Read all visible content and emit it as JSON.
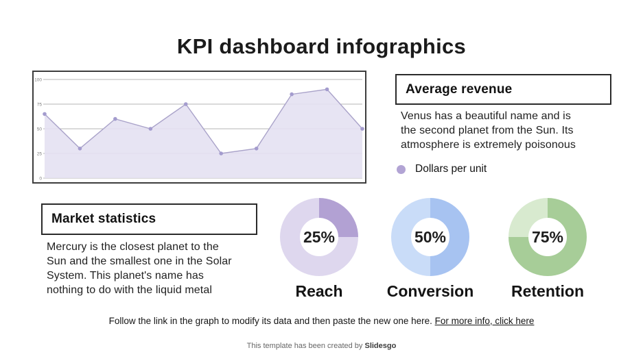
{
  "title": "KPI dashboard infographics",
  "average_revenue": {
    "heading": "Average revenue",
    "body_lines": [
      "Venus has a beautiful name and is",
      "the second planet from the Sun. Its",
      "atmosphere is extremely poisonous"
    ],
    "legend": {
      "label": "Dollars per unit",
      "color": "#b2a4d4"
    }
  },
  "market_statistics": {
    "heading": "Market statistics",
    "body_lines": [
      "Mercury is the closest planet to the",
      "Sun and the smallest one in the Solar",
      "System. This planet's name has",
      "nothing to do with the liquid metal"
    ]
  },
  "kpis": [
    {
      "label": "Reach",
      "value": 25,
      "value_label": "25%",
      "color_dark": "#b2a1d3",
      "color_light": "#ded7ee"
    },
    {
      "label": "Conversion",
      "value": 50,
      "value_label": "50%",
      "color_dark": "#a7c3f1",
      "color_light": "#c9dcf8"
    },
    {
      "label": "Retention",
      "value": 75,
      "value_label": "75%",
      "color_dark": "#a7cd98",
      "color_light": "#d8eacf"
    }
  ],
  "footer": {
    "note": "Follow the link in the graph to modify its data and then paste the new one here. ",
    "link": "For more info, click here",
    "credit_prefix": "This template has been created by ",
    "credit_brand": "Slidesgo"
  },
  "chart_data": {
    "type": "area",
    "x": [
      1,
      2,
      3,
      4,
      5,
      6,
      7,
      8,
      9,
      10
    ],
    "values": [
      65,
      30,
      60,
      50,
      75,
      25,
      30,
      85,
      90,
      50
    ],
    "series_name": "Dollars per unit",
    "title": "",
    "xlabel": "",
    "ylabel": "",
    "ylim": [
      0,
      100
    ],
    "y_ticks": [
      0,
      25,
      50,
      75,
      100
    ],
    "grid": true,
    "legend_position": "right-panel",
    "fill_color": "#e4e1f2",
    "line_color": "#a9a2c9",
    "point_color": "#a49cce",
    "gridline_color": "#9e9e9e",
    "tick_label_color": "#7a7a7a"
  }
}
